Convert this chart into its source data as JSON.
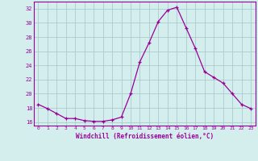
{
  "x": [
    0,
    1,
    2,
    3,
    4,
    5,
    6,
    7,
    8,
    9,
    10,
    11,
    12,
    13,
    14,
    15,
    16,
    17,
    18,
    19,
    20,
    21,
    22,
    23
  ],
  "y": [
    18.5,
    17.9,
    17.2,
    16.5,
    16.5,
    16.2,
    16.1,
    16.1,
    16.3,
    16.7,
    20.0,
    24.5,
    27.2,
    30.2,
    31.8,
    32.2,
    29.3,
    26.4,
    23.1,
    22.3,
    21.5,
    20.0,
    18.5,
    17.9
  ],
  "line_color": "#990099",
  "marker": "+",
  "marker_size": 3,
  "xlim": [
    -0.5,
    23.5
  ],
  "ylim": [
    15.5,
    33.0
  ],
  "yticks": [
    16,
    18,
    20,
    22,
    24,
    26,
    28,
    30,
    32
  ],
  "xticks": [
    0,
    1,
    2,
    3,
    4,
    5,
    6,
    7,
    8,
    9,
    10,
    11,
    12,
    13,
    14,
    15,
    16,
    17,
    18,
    19,
    20,
    21,
    22,
    23
  ],
  "xlabel": "Windchill (Refroidissement éolien,°C)",
  "background_color": "#d4eeee",
  "grid_color": "#aacccc",
  "label_color": "#990099",
  "tick_color": "#990099",
  "spine_color": "#990099"
}
